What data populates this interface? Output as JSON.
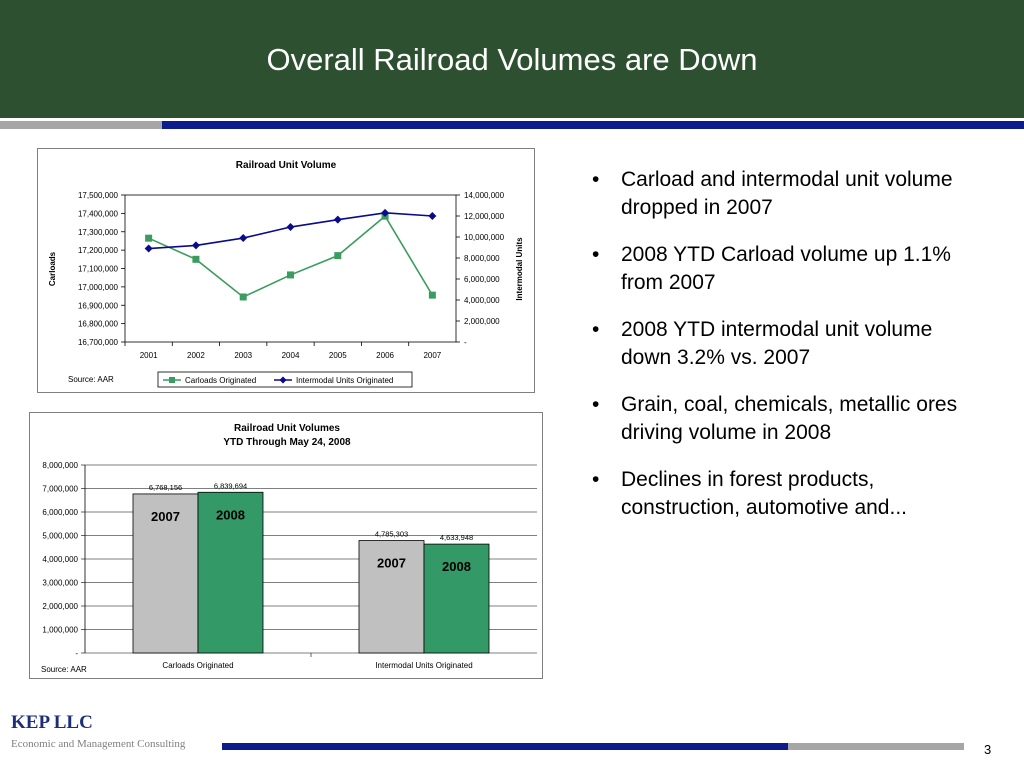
{
  "slide": {
    "title": "Overall Railroad Volumes are Down",
    "page_number": "3"
  },
  "footer": {
    "company": "KEP LLC",
    "tagline": "Economic and Management Consulting"
  },
  "bullets": [
    "Carload and intermodal unit volume dropped in 2007",
    "2008 YTD Carload volume up 1.1% from 2007",
    "2008 YTD intermodal unit volume down 3.2% vs. 2007",
    "Grain, coal, chemicals, metallic ores driving volume in 2008",
    "Declines in forest products, construction, automotive and..."
  ],
  "colors": {
    "header_green": "#2d5130",
    "navy": "#0c1c8c",
    "gray": "#a6a6a6",
    "carloads_series": "#3a9c5e",
    "intermodal_series": "#0a0a8c",
    "bar_2007": "#c0c0c0",
    "bar_2008": "#339966"
  },
  "chart_data": [
    {
      "type": "line",
      "title": "Railroad Unit Volume",
      "source": "Source: AAR",
      "x": [
        "2001",
        "2002",
        "2003",
        "2004",
        "2005",
        "2006",
        "2007"
      ],
      "ylabel": "Carloads",
      "y2label": "Intermodal Units",
      "ylim": [
        16700000,
        17500000
      ],
      "y2lim": [
        0,
        14000000
      ],
      "y_ticks": [
        "16,700,000",
        "16,800,000",
        "16,900,000",
        "17,000,000",
        "17,100,000",
        "17,200,000",
        "17,300,000",
        "17,400,000",
        "17,500,000"
      ],
      "y2_ticks": [
        "-",
        "2,000,000",
        "4,000,000",
        "6,000,000",
        "8,000,000",
        "10,000,000",
        "12,000,000",
        "14,000,000"
      ],
      "series": [
        {
          "name": "Carloads Originated",
          "axis": "left",
          "marker": "square",
          "values": [
            17265000,
            17150000,
            16945000,
            17065000,
            17170000,
            17385000,
            16955000
          ]
        },
        {
          "name": "Intermodal Units Originated",
          "axis": "right",
          "marker": "diamond",
          "values": [
            8900000,
            9200000,
            9900000,
            10950000,
            11650000,
            12300000,
            12000000
          ]
        }
      ],
      "legend": "bottom"
    },
    {
      "type": "bar",
      "title": "Railroad Unit Volumes",
      "subtitle": "YTD Through May 24, 2008",
      "source": "Source: AAR",
      "categories": [
        "Carloads Originated",
        "Intermodal Units Originated"
      ],
      "ylim": [
        0,
        8000000
      ],
      "y_ticks": [
        "-",
        "1,000,000",
        "2,000,000",
        "3,000,000",
        "4,000,000",
        "5,000,000",
        "6,000,000",
        "7,000,000",
        "8,000,000"
      ],
      "series": [
        {
          "name": "2007",
          "values": [
            6768156,
            4785303
          ],
          "labels": [
            "6,768,156",
            "4,785,303"
          ]
        },
        {
          "name": "2008",
          "values": [
            6839694,
            4633948
          ],
          "labels": [
            "6,839,694",
            "4,633,948"
          ]
        }
      ]
    }
  ]
}
